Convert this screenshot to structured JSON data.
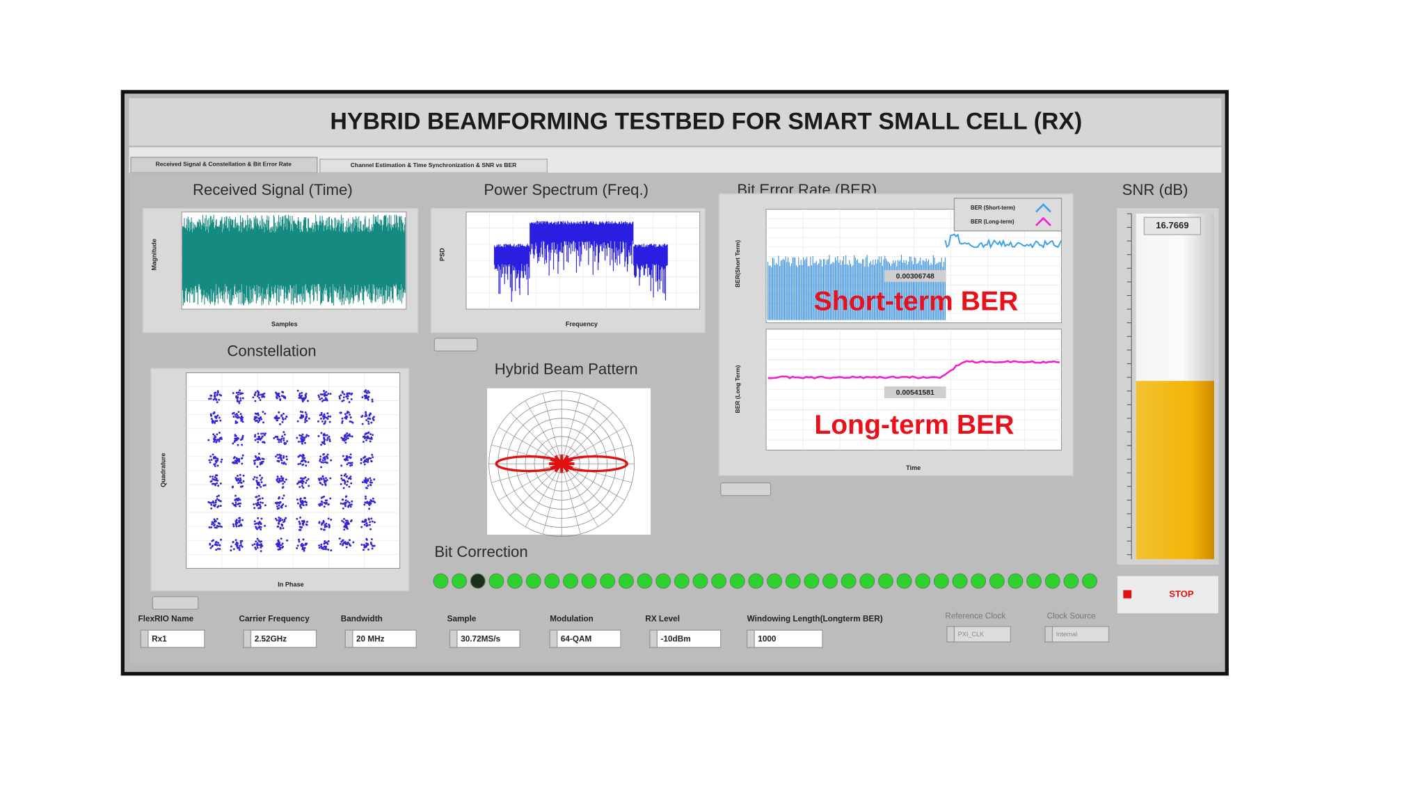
{
  "header": {
    "title": "HYBRID BEAMFORMING TESTBED FOR SMART SMALL CELL (RX)"
  },
  "tabs": [
    "Received Signal & Constellation & Bit Error Rate",
    "Channel Estimation & Time Synchronization & SNR vs BER"
  ],
  "panels": {
    "received_signal": {
      "title": "Received Signal (Time)",
      "x_label": "Samples",
      "y_label": "Magnitude"
    },
    "power_spectrum": {
      "title": "Power Spectrum (Freq.)",
      "x_label": "Frequency",
      "y_label": "PSD"
    },
    "constellation": {
      "title": "Constellation",
      "x_label": "In Phase",
      "y_label": "Quadrature"
    },
    "beam_pattern": {
      "title": "Hybrid Beam Pattern"
    },
    "ber": {
      "title": "Bit Error Rate (BER)",
      "legend": [
        "BER (Short-term)",
        "BER (Long-term)"
      ],
      "x_label": "Time",
      "short_term": {
        "y_label": "BER(Short Term)",
        "value": "0.00306748",
        "annotation": "Short-term BER"
      },
      "long_term": {
        "y_label": "BER (Long Term)",
        "value": "0.00541581",
        "annotation": "Long-term BER"
      }
    },
    "snr": {
      "title": "SNR (dB)",
      "value": 16.7669,
      "scale": [
        -8,
        40
      ]
    },
    "bit_correction": {
      "title": "Bit Correction",
      "leds": [
        1,
        1,
        0,
        1,
        1,
        1,
        1,
        1,
        1,
        1,
        1,
        1,
        1,
        1,
        1,
        1,
        1,
        1,
        1,
        1,
        1,
        1,
        1,
        1,
        1,
        1,
        1,
        1,
        1,
        1,
        1,
        1,
        1,
        1,
        1,
        1
      ]
    }
  },
  "stop": "STOP",
  "controls": [
    {
      "label": "FlexRIO Name",
      "value": "Rx1"
    },
    {
      "label": "Carrier Frequency",
      "value": "2.52GHz"
    },
    {
      "label": "Bandwidth",
      "value": "20 MHz"
    },
    {
      "label": "Sample",
      "value": "30.72MS/s"
    },
    {
      "label": "Modulation",
      "value": "64-QAM"
    },
    {
      "label": "RX Level",
      "value": "-10dBm"
    },
    {
      "label": "Windowing Length(Longterm BER)",
      "value": "1000"
    },
    {
      "label": "Reference Clock",
      "value": "PXI_CLK"
    },
    {
      "label": "Clock Source",
      "value": "Internal"
    }
  ]
}
